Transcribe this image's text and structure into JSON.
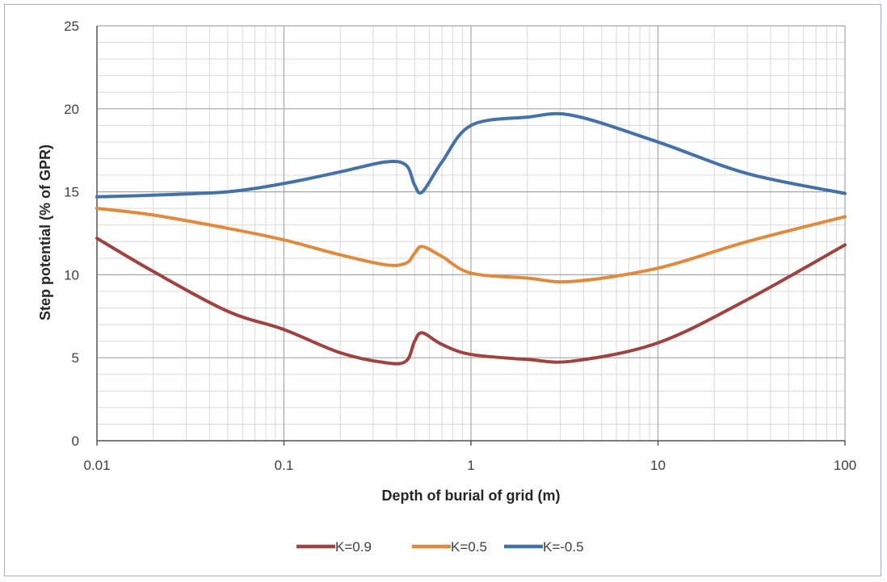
{
  "chart_data": {
    "type": "line",
    "xscale": "log",
    "xlabel": "Depth of burial of grid (m)",
    "ylabel": "Step potential (% of GPR)",
    "xlim": [
      0.01,
      100
    ],
    "ylim": [
      0,
      25
    ],
    "x_ticks": [
      "0.01",
      "0.1",
      "1",
      "10",
      "100"
    ],
    "y_ticks": [
      "0",
      "5",
      "10",
      "15",
      "20",
      "25"
    ],
    "grid": true,
    "legend_position": "bottom",
    "series": [
      {
        "name": "K=0.9",
        "color": "#a0423f",
        "x": [
          0.01,
          0.02,
          0.05,
          0.1,
          0.2,
          0.35,
          0.45,
          0.5,
          0.55,
          0.7,
          1,
          2,
          3.5,
          10,
          30,
          100
        ],
        "y": [
          12.2,
          10.2,
          7.8,
          6.7,
          5.3,
          4.7,
          4.8,
          6.0,
          6.5,
          5.8,
          5.2,
          4.9,
          4.8,
          5.9,
          8.5,
          11.8
        ]
      },
      {
        "name": "K=0.5",
        "color": "#e28a3b",
        "x": [
          0.01,
          0.02,
          0.05,
          0.1,
          0.2,
          0.35,
          0.45,
          0.5,
          0.55,
          0.7,
          1,
          2,
          3.5,
          10,
          30,
          100
        ],
        "y": [
          14.0,
          13.6,
          12.8,
          12.1,
          11.2,
          10.6,
          10.7,
          11.3,
          11.7,
          11.1,
          10.1,
          9.8,
          9.6,
          10.4,
          12.0,
          13.5
        ]
      },
      {
        "name": "K=-0.5",
        "color": "#4471a8",
        "x": [
          0.01,
          0.02,
          0.05,
          0.1,
          0.2,
          0.35,
          0.45,
          0.5,
          0.55,
          0.7,
          1,
          2,
          3.5,
          10,
          30,
          100
        ],
        "y": [
          14.7,
          14.8,
          15.0,
          15.5,
          16.2,
          16.8,
          16.6,
          15.4,
          15.0,
          16.8,
          19.0,
          19.5,
          19.6,
          18.0,
          16.1,
          14.9
        ]
      }
    ]
  }
}
